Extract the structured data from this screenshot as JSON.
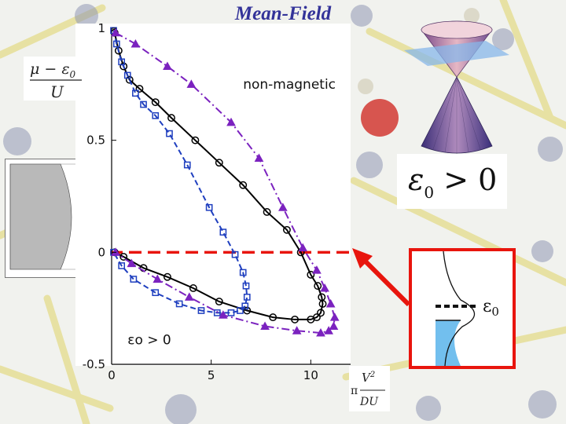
{
  "slide": {
    "title": "Mean-Field"
  },
  "labels": {
    "y_axis": {
      "numerator": "μ − ε",
      "numerator_sub": "0",
      "denominator": "U"
    },
    "x_axis": {
      "prefix": "π",
      "numerator": "V",
      "numerator_sup": "2",
      "denominator": "DU"
    },
    "cone": {
      "eps": "ε",
      "sub": "0",
      "rest": " > 0"
    },
    "inset": {
      "eps": "ε",
      "sub": "0"
    }
  },
  "chart_data": {
    "type": "line",
    "title": "",
    "xlim": [
      0,
      12
    ],
    "ylim": [
      -0.5,
      1.0
    ],
    "x_ticks": [
      0,
      5,
      10
    ],
    "y_ticks": [
      -0.5,
      0,
      0.5,
      1
    ],
    "x_tick_labels": [
      "0",
      "5",
      "10"
    ],
    "y_tick_labels": [
      "-0.5",
      "0",
      "0.5",
      "1"
    ],
    "reference_line": {
      "y": 0,
      "color": "#e8150d",
      "style": "dashed"
    },
    "annotations": [
      {
        "text": "non-magnetic",
        "x": 6.6,
        "y": 0.73
      },
      {
        "text": "εo > 0",
        "x": 0.8,
        "y": -0.41
      }
    ],
    "series": [
      {
        "name": "circles-solid",
        "color": "#000000",
        "marker": "circle",
        "dash": "",
        "x": [
          0.15,
          0.35,
          0.6,
          0.9,
          1.4,
          2.2,
          3.0,
          4.2,
          5.4,
          6.6,
          7.8,
          8.8,
          9.5,
          10.0,
          10.35,
          10.55,
          10.6,
          10.5,
          10.3,
          10.0,
          9.2,
          8.1,
          6.8,
          5.4,
          4.1,
          2.8,
          1.6,
          0.6,
          0.15
        ],
        "y": [
          0.98,
          0.9,
          0.83,
          0.77,
          0.73,
          0.67,
          0.6,
          0.5,
          0.4,
          0.3,
          0.18,
          0.1,
          0.0,
          -0.1,
          -0.15,
          -0.2,
          -0.23,
          -0.27,
          -0.29,
          -0.3,
          -0.3,
          -0.29,
          -0.26,
          -0.22,
          -0.16,
          -0.11,
          -0.07,
          -0.02,
          0.0
        ]
      },
      {
        "name": "squares-dashed",
        "color": "#1f3fbf",
        "marker": "square",
        "dash": "7,4",
        "x": [
          0.1,
          0.25,
          0.5,
          0.8,
          1.2,
          1.6,
          2.2,
          2.9,
          3.8,
          4.9,
          5.6,
          6.2,
          6.6,
          6.75,
          6.8,
          6.7,
          6.45,
          6.0,
          5.3,
          4.5,
          3.4,
          2.2,
          1.1,
          0.5,
          0.1
        ],
        "y": [
          0.99,
          0.93,
          0.85,
          0.79,
          0.71,
          0.66,
          0.61,
          0.53,
          0.39,
          0.2,
          0.09,
          -0.01,
          -0.09,
          -0.15,
          -0.2,
          -0.24,
          -0.26,
          -0.27,
          -0.27,
          -0.26,
          -0.23,
          -0.18,
          -0.12,
          -0.06,
          0.0
        ]
      },
      {
        "name": "triangles-dashdot",
        "color": "#7b22bf",
        "marker": "triangle",
        "dash": "10,4,2,4",
        "x": [
          0.2,
          1.2,
          2.8,
          4.0,
          6.0,
          7.4,
          8.6,
          9.6,
          10.3,
          10.7,
          11.0,
          11.2,
          11.15,
          10.9,
          10.5,
          9.3,
          7.7,
          5.6,
          3.9,
          2.3,
          1.0,
          0.2
        ],
        "y": [
          0.98,
          0.93,
          0.83,
          0.75,
          0.58,
          0.42,
          0.2,
          0.02,
          -0.08,
          -0.16,
          -0.23,
          -0.29,
          -0.33,
          -0.35,
          -0.36,
          -0.35,
          -0.33,
          -0.28,
          -0.2,
          -0.12,
          -0.05,
          0.0
        ]
      }
    ]
  }
}
